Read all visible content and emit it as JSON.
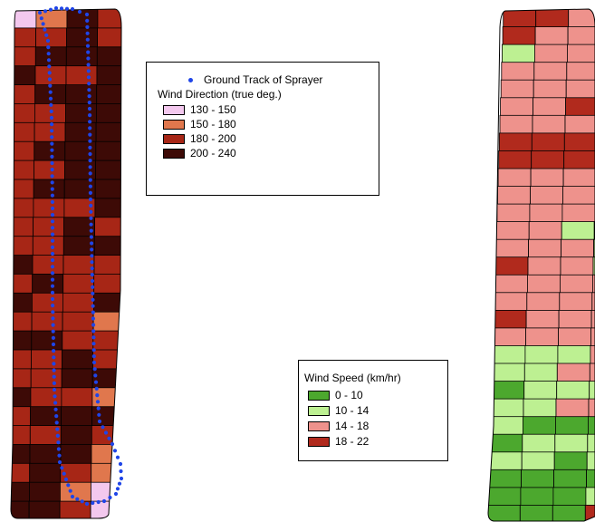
{
  "direction_legend": {
    "track_label": "Ground Track of Sprayer",
    "title": "Wind Direction (true deg.)",
    "classes": [
      {
        "label": "130 - 150",
        "color": "#f3c8ee"
      },
      {
        "label": "150 - 180",
        "color": "#e0774d"
      },
      {
        "label": "180 - 200",
        "color": "#a72616"
      },
      {
        "label": "200 - 240",
        "color": "#3d0a06"
      }
    ],
    "track_color": "#1f45e8"
  },
  "speed_legend": {
    "title": "Wind Speed (km/hr)",
    "classes": [
      {
        "label": "0 - 10",
        "color": "#4ca82e"
      },
      {
        "label": "10 - 14",
        "color": "#bdf092"
      },
      {
        "label": "14 - 18",
        "color": "#ee928c"
      },
      {
        "label": "18 - 22",
        "color": "#b12a1d"
      }
    ]
  },
  "direction_grid": [
    "0132",
    "2232",
    "2333",
    "3223",
    "2333",
    "2233",
    "2233",
    "2333",
    "2233",
    "2333",
    "2223",
    "2232",
    "2233",
    "3222",
    "2322",
    "3223",
    "2221",
    "3322",
    "2232",
    "2233",
    "3221",
    "2333",
    "2232",
    "3331",
    "2321",
    "3310",
    "3320"
  ],
  "speed_grid": [
    "3322",
    "3222",
    "1222",
    "2223",
    "2222",
    "2233",
    "2222",
    "3333",
    "3333",
    "2222",
    "2222",
    "2221",
    "2211",
    "2221",
    "3221",
    "2222",
    "2222",
    "3222",
    "2222",
    "1112",
    "1122",
    "0111",
    "1122",
    "1000",
    "0111",
    "1101",
    "0000",
    "0001",
    "0003"
  ]
}
